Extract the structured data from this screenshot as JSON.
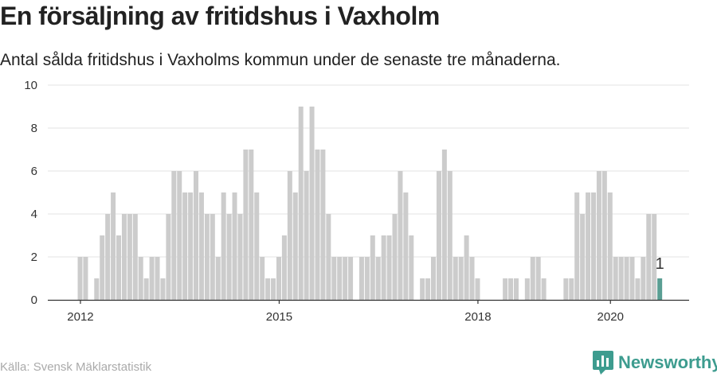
{
  "title": "En försäljning av fritidshus i Vaxholm",
  "subtitle": "Antal sålda fritidshus i Vaxholms kommun under de senaste tre månaderna.",
  "source": "Källa: Svensk Mäklarstatistik",
  "brand": {
    "name": "Newsworthy",
    "icon": "newsworthy-logo-icon",
    "color": "#3d9c8f"
  },
  "chart_data": {
    "type": "bar",
    "start": "2011-09",
    "frequency": "monthly",
    "values": [
      2,
      2,
      0,
      1,
      3,
      4,
      5,
      3,
      4,
      4,
      4,
      2,
      1,
      2,
      2,
      1,
      4,
      6,
      6,
      5,
      5,
      6,
      5,
      4,
      4,
      2,
      5,
      4,
      5,
      4,
      7,
      7,
      5,
      2,
      1,
      1,
      2,
      3,
      6,
      5,
      9,
      6,
      9,
      7,
      7,
      4,
      2,
      2,
      2,
      2,
      0,
      2,
      2,
      3,
      2,
      3,
      3,
      4,
      6,
      5,
      3,
      0,
      1,
      1,
      2,
      6,
      7,
      6,
      2,
      2,
      3,
      2,
      1,
      0,
      0,
      0,
      0,
      1,
      1,
      1,
      0,
      1,
      2,
      2,
      1,
      0,
      0,
      0,
      1,
      1,
      5,
      4,
      5,
      5,
      6,
      6,
      5,
      2,
      2,
      2,
      2,
      1,
      2,
      4,
      4,
      1
    ],
    "highlight": {
      "index": 105,
      "label": "1",
      "color": "#5a9e93"
    },
    "bar_color": "#cccccc",
    "ylim": [
      0,
      10
    ],
    "yticks": [
      0,
      2,
      4,
      6,
      8,
      10
    ],
    "xticks": [
      {
        "label": "2012",
        "index": 0.5
      },
      {
        "label": "2015",
        "index": 36.5
      },
      {
        "label": "2018",
        "index": 72.5
      },
      {
        "label": "2020",
        "index": 96.5
      }
    ],
    "grid": true,
    "xlabel": "",
    "ylabel": ""
  }
}
